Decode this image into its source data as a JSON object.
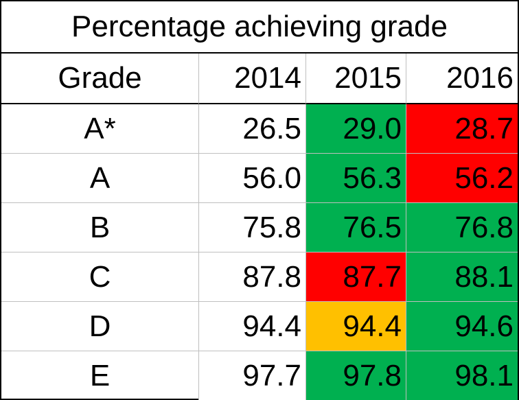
{
  "chart_data": {
    "type": "table",
    "title": "Percentage achieving grade",
    "columns": [
      "Grade",
      "2014",
      "2015",
      "2016"
    ],
    "rows": [
      {
        "grade": "A*",
        "values": [
          "26.5",
          "29.0",
          "28.7"
        ],
        "colors": [
          "#ffffff",
          "#00b050",
          "#ff0000"
        ]
      },
      {
        "grade": "A",
        "values": [
          "56.0",
          "56.3",
          "56.2"
        ],
        "colors": [
          "#ffffff",
          "#00b050",
          "#ff0000"
        ]
      },
      {
        "grade": "B",
        "values": [
          "75.8",
          "76.5",
          "76.8"
        ],
        "colors": [
          "#ffffff",
          "#00b050",
          "#00b050"
        ]
      },
      {
        "grade": "C",
        "values": [
          "87.8",
          "87.7",
          "88.1"
        ],
        "colors": [
          "#ffffff",
          "#ff0000",
          "#00b050"
        ]
      },
      {
        "grade": "D",
        "values": [
          "94.4",
          "94.4",
          "94.6"
        ],
        "colors": [
          "#ffffff",
          "#ffc000",
          "#00b050"
        ]
      },
      {
        "grade": "E",
        "values": [
          "97.7",
          "97.8",
          "98.1"
        ],
        "colors": [
          "#ffffff",
          "#00b050",
          "#00b050"
        ]
      }
    ]
  }
}
